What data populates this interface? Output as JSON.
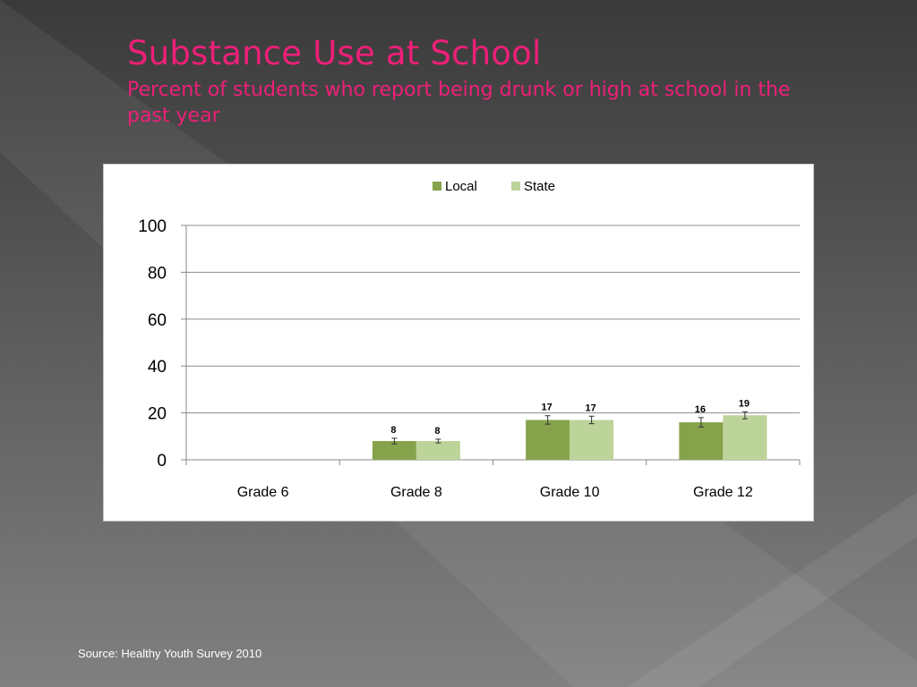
{
  "slide": {
    "title": "Substance Use at School",
    "subtitle": "Percent of students who report being drunk or high at school in the past year",
    "source": "Source: Healthy Youth Survey 2010",
    "colors": {
      "title": "#ee1f78",
      "background_dark": "#3c3c3c",
      "background_light": "#7a7a7a"
    }
  },
  "chart_data": {
    "type": "bar",
    "title": "",
    "xlabel": "",
    "ylabel": "",
    "categories": [
      "Grade 6",
      "Grade 8",
      "Grade 10",
      "Grade 12"
    ],
    "series": [
      {
        "name": "Local",
        "color": "#86a34c",
        "values": [
          null,
          8,
          17,
          16
        ],
        "error": [
          null,
          1.2,
          1.8,
          2.0
        ]
      },
      {
        "name": "State",
        "color": "#bcd39a",
        "values": [
          null,
          8,
          17,
          19
        ],
        "error": [
          null,
          0.8,
          1.6,
          1.5
        ]
      }
    ],
    "yticks": [
      0,
      20,
      40,
      60,
      80,
      100
    ],
    "ylim": [
      0,
      100
    ],
    "grid": true,
    "legend_position": "top-center"
  }
}
